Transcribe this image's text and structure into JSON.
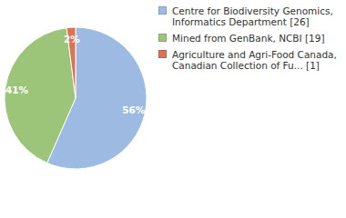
{
  "chart_data": {
    "type": "pie",
    "categories": [
      "Centre for Biodiversity Genomics, Informatics Department [26]",
      "Mined from GenBank, NCBI [19]",
      "Agriculture and Agri-Food Canada, Canadian Collection of Fu... [1]"
    ],
    "values": [
      56,
      41,
      2
    ],
    "value_labels": [
      "56%",
      "41%",
      "2%"
    ],
    "colors": [
      "#9dbbe2",
      "#9dc57a",
      "#dc7357"
    ],
    "data_labels": true,
    "legend": "right"
  }
}
